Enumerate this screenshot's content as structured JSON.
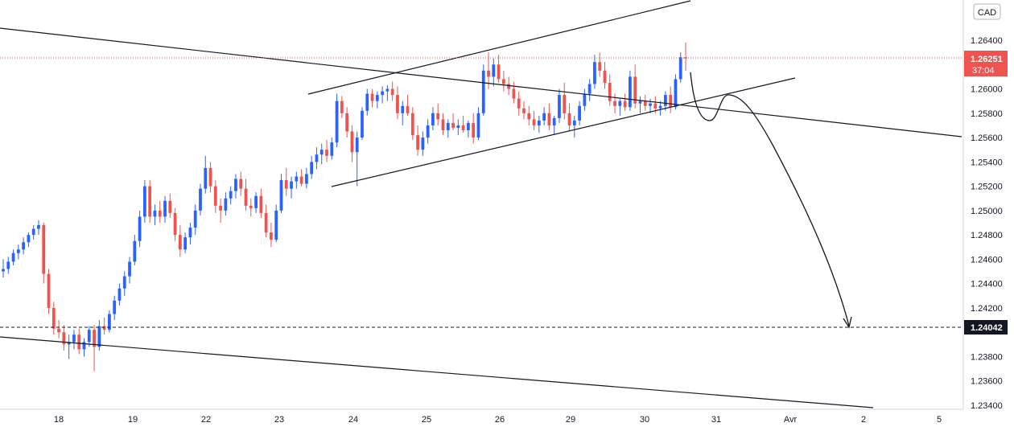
{
  "chart_data": {
    "type": "candlestick",
    "currency": "CAD",
    "y_axis": {
      "ticks": [
        1.264,
        1.262,
        1.26,
        1.258,
        1.256,
        1.254,
        1.252,
        1.25,
        1.248,
        1.246,
        1.244,
        1.242,
        1.238,
        1.236,
        1.234
      ],
      "tick_labels": [
        "1.26400",
        "1.26200",
        "1.26000",
        "1.25800",
        "1.25600",
        "1.25400",
        "1.25200",
        "1.25000",
        "1.24800",
        "1.24600",
        "1.24400",
        "1.24200",
        "1.23800",
        "1.23600",
        "1.23400"
      ],
      "range": [
        1.2334,
        1.2667
      ]
    },
    "x_axis": {
      "labels": [
        "18",
        "19",
        "22",
        "23",
        "24",
        "25",
        "26",
        "29",
        "30",
        "31",
        "Avr",
        "2",
        "5"
      ]
    },
    "current_price": {
      "value": 1.26251,
      "label": "1.26251",
      "countdown": "37:04",
      "color": "#ef5350"
    },
    "target_level": {
      "value": 1.24042,
      "label": "1.24042"
    },
    "colors": {
      "up": "#2962ff",
      "down": "#ef5350",
      "lines": "#131722"
    },
    "candles": [
      [
        1.245,
        1.246,
        1.2445,
        1.2452
      ],
      [
        1.2452,
        1.2462,
        1.2448,
        1.2458
      ],
      [
        1.2458,
        1.2468,
        1.2455,
        1.2465
      ],
      [
        1.2465,
        1.2472,
        1.246,
        1.2468
      ],
      [
        1.2468,
        1.2478,
        1.2464,
        1.2474
      ],
      [
        1.2474,
        1.2482,
        1.247,
        1.248
      ],
      [
        1.248,
        1.2488,
        1.2476,
        1.2485
      ],
      [
        1.2485,
        1.2492,
        1.248,
        1.2488
      ],
      [
        1.2488,
        1.249,
        1.244,
        1.2448
      ],
      [
        1.2448,
        1.2452,
        1.2415,
        1.242
      ],
      [
        1.242,
        1.2425,
        1.2398,
        1.2403
      ],
      [
        1.2403,
        1.241,
        1.2395,
        1.24
      ],
      [
        1.24,
        1.2406,
        1.2385,
        1.239
      ],
      [
        1.239,
        1.2398,
        1.2378,
        1.2392
      ],
      [
        1.2392,
        1.2402,
        1.2386,
        1.2398
      ],
      [
        1.2398,
        1.2403,
        1.2382,
        1.2386
      ],
      [
        1.2386,
        1.2395,
        1.238,
        1.2392
      ],
      [
        1.2392,
        1.2405,
        1.2388,
        1.2402
      ],
      [
        1.2402,
        1.2406,
        1.2368,
        1.2388
      ],
      [
        1.2388,
        1.241,
        1.2385,
        1.2405
      ],
      [
        1.2405,
        1.2412,
        1.2398,
        1.2402
      ],
      [
        1.2402,
        1.2418,
        1.24,
        1.2415
      ],
      [
        1.2415,
        1.243,
        1.241,
        1.2426
      ],
      [
        1.2426,
        1.244,
        1.2422,
        1.2436
      ],
      [
        1.2436,
        1.245,
        1.243,
        1.2446
      ],
      [
        1.2446,
        1.2462,
        1.244,
        1.2458
      ],
      [
        1.2458,
        1.248,
        1.2455,
        1.2475
      ],
      [
        1.2475,
        1.25,
        1.247,
        1.2495
      ],
      [
        1.2495,
        1.2525,
        1.249,
        1.252
      ],
      [
        1.252,
        1.2525,
        1.249,
        1.2495
      ],
      [
        1.2495,
        1.2505,
        1.2488,
        1.25
      ],
      [
        1.25,
        1.2508,
        1.249,
        1.2495
      ],
      [
        1.2495,
        1.2512,
        1.249,
        1.2508
      ],
      [
        1.2508,
        1.2514,
        1.2494,
        1.2498
      ],
      [
        1.2498,
        1.2502,
        1.2475,
        1.248
      ],
      [
        1.248,
        1.2488,
        1.2462,
        1.2468
      ],
      [
        1.2468,
        1.2482,
        1.2465,
        1.2478
      ],
      [
        1.2478,
        1.249,
        1.2472,
        1.2486
      ],
      [
        1.2486,
        1.2505,
        1.248,
        1.25
      ],
      [
        1.25,
        1.2522,
        1.2496,
        1.2518
      ],
      [
        1.2518,
        1.2545,
        1.2514,
        1.2535
      ],
      [
        1.2535,
        1.254,
        1.2515,
        1.252
      ],
      [
        1.252,
        1.2525,
        1.2498,
        1.2504
      ],
      [
        1.2504,
        1.251,
        1.249,
        1.25
      ],
      [
        1.25,
        1.2515,
        1.2496,
        1.251
      ],
      [
        1.251,
        1.252,
        1.2505,
        1.2516
      ],
      [
        1.2516,
        1.253,
        1.251,
        1.2526
      ],
      [
        1.2526,
        1.2532,
        1.2512,
        1.2518
      ],
      [
        1.2518,
        1.2526,
        1.25,
        1.2504
      ],
      [
        1.2504,
        1.251,
        1.2495,
        1.2502
      ],
      [
        1.2502,
        1.2515,
        1.2498,
        1.2512
      ],
      [
        1.2512,
        1.2518,
        1.2494,
        1.2498
      ],
      [
        1.2498,
        1.2505,
        1.2478,
        1.2482
      ],
      [
        1.2482,
        1.249,
        1.247,
        1.2476
      ],
      [
        1.2476,
        1.2505,
        1.2474,
        1.25
      ],
      [
        1.25,
        1.253,
        1.2498,
        1.2525
      ],
      [
        1.2525,
        1.2535,
        1.2512,
        1.2518
      ],
      [
        1.2518,
        1.2528,
        1.251,
        1.2524
      ],
      [
        1.2524,
        1.2532,
        1.2518,
        1.2528
      ],
      [
        1.2528,
        1.2534,
        1.252,
        1.2522
      ],
      [
        1.2522,
        1.2535,
        1.2518,
        1.253
      ],
      [
        1.253,
        1.2545,
        1.2526,
        1.254
      ],
      [
        1.254,
        1.2552,
        1.2534,
        1.2546
      ],
      [
        1.2546,
        1.2555,
        1.2538,
        1.255
      ],
      [
        1.255,
        1.2558,
        1.254,
        1.2545
      ],
      [
        1.2545,
        1.256,
        1.2542,
        1.2556
      ],
      [
        1.2556,
        1.2596,
        1.2552,
        1.259
      ],
      [
        1.259,
        1.2594,
        1.2576,
        1.258
      ],
      [
        1.258,
        1.2585,
        1.256,
        1.2565
      ],
      [
        1.2565,
        1.257,
        1.254,
        1.2548
      ],
      [
        1.2548,
        1.2565,
        1.252,
        1.256
      ],
      [
        1.256,
        1.2585,
        1.2558,
        1.2582
      ],
      [
        1.2582,
        1.26,
        1.2578,
        1.2596
      ],
      [
        1.2596,
        1.26,
        1.2585,
        1.259
      ],
      [
        1.259,
        1.2598,
        1.2584,
        1.2595
      ],
      [
        1.2595,
        1.2602,
        1.2588,
        1.2598
      ],
      [
        1.2598,
        1.2603,
        1.259,
        1.26
      ],
      [
        1.26,
        1.2606,
        1.259,
        1.2595
      ],
      [
        1.2595,
        1.2602,
        1.2575,
        1.258
      ],
      [
        1.258,
        1.259,
        1.257,
        1.2586
      ],
      [
        1.2586,
        1.2595,
        1.2578,
        1.258
      ],
      [
        1.258,
        1.2585,
        1.2558,
        1.2562
      ],
      [
        1.2562,
        1.257,
        1.2545,
        1.255
      ],
      [
        1.255,
        1.2565,
        1.2545,
        1.256
      ],
      [
        1.256,
        1.2575,
        1.2555,
        1.257
      ],
      [
        1.257,
        1.2585,
        1.2566,
        1.258
      ],
      [
        1.258,
        1.2588,
        1.257,
        1.2575
      ],
      [
        1.2575,
        1.258,
        1.2562,
        1.2566
      ],
      [
        1.2566,
        1.2575,
        1.256,
        1.2572
      ],
      [
        1.2572,
        1.258,
        1.2566,
        1.2568
      ],
      [
        1.2568,
        1.2575,
        1.2562,
        1.257
      ],
      [
        1.257,
        1.2578,
        1.2564,
        1.2566
      ],
      [
        1.2566,
        1.2574,
        1.256,
        1.2572
      ],
      [
        1.2572,
        1.258,
        1.2555,
        1.256
      ],
      [
        1.256,
        1.2585,
        1.2558,
        1.258
      ],
      [
        1.258,
        1.262,
        1.2578,
        1.2615
      ],
      [
        1.2615,
        1.263,
        1.26,
        1.261
      ],
      [
        1.261,
        1.2625,
        1.2602,
        1.262
      ],
      [
        1.262,
        1.2628,
        1.2605,
        1.2608
      ],
      [
        1.2608,
        1.2615,
        1.2598,
        1.2604
      ],
      [
        1.2604,
        1.261,
        1.2595,
        1.26
      ],
      [
        1.26,
        1.2606,
        1.2588,
        1.2592
      ],
      [
        1.2592,
        1.2598,
        1.2578,
        1.2584
      ],
      [
        1.2584,
        1.259,
        1.2575,
        1.258
      ],
      [
        1.258,
        1.2586,
        1.257,
        1.2575
      ],
      [
        1.2575,
        1.2582,
        1.2566,
        1.257
      ],
      [
        1.257,
        1.2578,
        1.2564,
        1.2574
      ],
      [
        1.2574,
        1.2585,
        1.257,
        1.258
      ],
      [
        1.258,
        1.2588,
        1.2566,
        1.257
      ],
      [
        1.257,
        1.2578,
        1.2562,
        1.2576
      ],
      [
        1.2576,
        1.26,
        1.2572,
        1.2595
      ],
      [
        1.2595,
        1.2605,
        1.2575,
        1.258
      ],
      [
        1.258,
        1.2588,
        1.2565,
        1.257
      ],
      [
        1.257,
        1.2578,
        1.256,
        1.2574
      ],
      [
        1.2574,
        1.259,
        1.257,
        1.2586
      ],
      [
        1.2586,
        1.26,
        1.2582,
        1.2596
      ],
      [
        1.2596,
        1.2608,
        1.259,
        1.2604
      ],
      [
        1.2604,
        1.2628,
        1.26,
        1.2622
      ],
      [
        1.2622,
        1.263,
        1.261,
        1.2615
      ],
      [
        1.2615,
        1.2622,
        1.26,
        1.2605
      ],
      [
        1.2605,
        1.2612,
        1.2586,
        1.259
      ],
      [
        1.259,
        1.2596,
        1.258,
        1.2586
      ],
      [
        1.2586,
        1.2592,
        1.2578,
        1.259
      ],
      [
        1.259,
        1.2596,
        1.2582,
        1.2585
      ],
      [
        1.2585,
        1.2615,
        1.2582,
        1.261
      ],
      [
        1.261,
        1.262,
        1.2584,
        1.2588
      ],
      [
        1.2588,
        1.2594,
        1.258,
        1.259
      ],
      [
        1.259,
        1.2595,
        1.2582,
        1.2586
      ],
      [
        1.2586,
        1.2592,
        1.258,
        1.2588
      ],
      [
        1.2588,
        1.2594,
        1.258,
        1.2584
      ],
      [
        1.2584,
        1.259,
        1.2578,
        1.2586
      ],
      [
        1.2586,
        1.2598,
        1.2582,
        1.2595
      ],
      [
        1.2595,
        1.2602,
        1.258,
        1.2585
      ],
      [
        1.2585,
        1.2612,
        1.2583,
        1.2608
      ],
      [
        1.2608,
        1.263,
        1.2605,
        1.2626
      ],
      [
        1.2626,
        1.2638,
        1.2615,
        1.2625
      ]
    ]
  }
}
